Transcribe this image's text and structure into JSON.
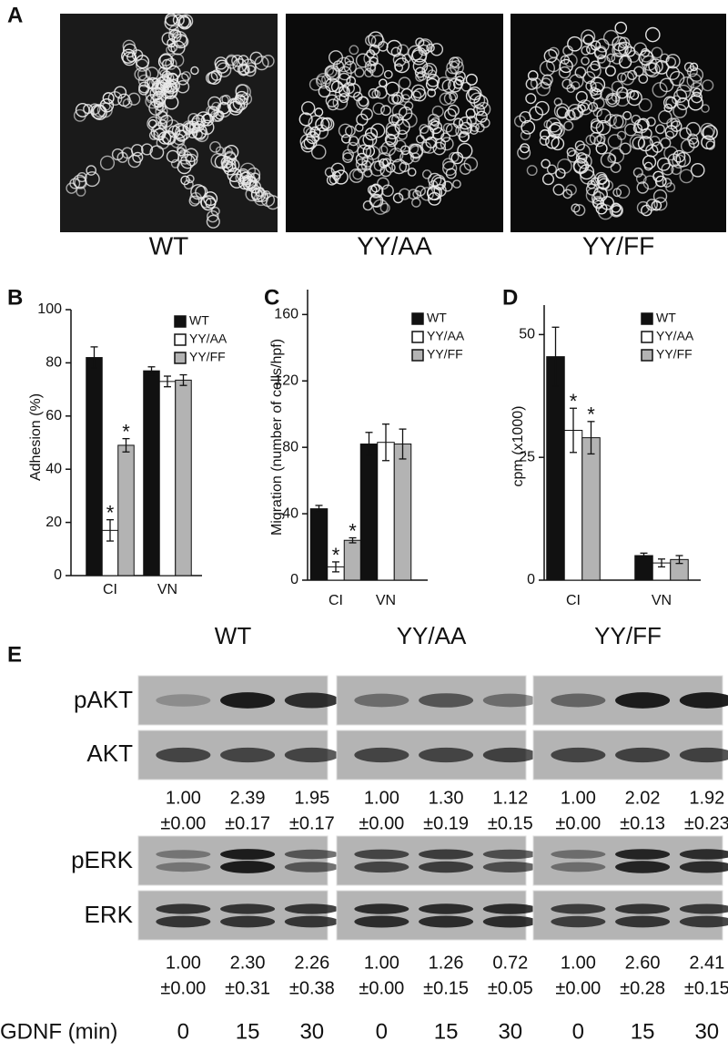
{
  "panel_labels": [
    "A",
    "B",
    "C",
    "D",
    "E"
  ],
  "images": {
    "captions": [
      "WT",
      "YY/AA",
      "YY/FF"
    ]
  },
  "chart_data": [
    {
      "type": "bar",
      "ylabel": "Adhesion (%)",
      "categories": [
        "CI",
        "VN"
      ],
      "ylim": [
        0,
        100
      ],
      "yticks": [
        0,
        20,
        40,
        60,
        80,
        100
      ],
      "series": [
        {
          "name": "WT",
          "color": "#111111",
          "values": [
            82,
            77
          ],
          "errors": [
            4,
            1.5
          ],
          "annotations": [
            null,
            null
          ]
        },
        {
          "name": "YY/AA",
          "color": "#ffffff",
          "values": [
            17,
            73
          ],
          "errors": [
            4,
            2
          ],
          "annotations": [
            "*",
            null
          ]
        },
        {
          "name": "YY/FF",
          "color": "#b3b3b3",
          "values": [
            49,
            73.5
          ],
          "errors": [
            2.5,
            2
          ],
          "annotations": [
            "*",
            null
          ]
        }
      ]
    },
    {
      "type": "bar",
      "ylabel": "Migration (number of cells/hpf)",
      "categories": [
        "CI",
        "VN"
      ],
      "ylim": [
        0,
        175
      ],
      "yticks": [
        0,
        40,
        80,
        120,
        160
      ],
      "series": [
        {
          "name": "WT",
          "color": "#111111",
          "values": [
            43,
            82
          ],
          "errors": [
            2,
            7
          ],
          "annotations": [
            null,
            null
          ]
        },
        {
          "name": "YY/AA",
          "color": "#ffffff",
          "values": [
            8,
            83
          ],
          "errors": [
            3,
            11
          ],
          "annotations": [
            "*",
            null
          ]
        },
        {
          "name": "YY/FF",
          "color": "#b3b3b3",
          "values": [
            24,
            82
          ],
          "errors": [
            1.5,
            9
          ],
          "annotations": [
            "*",
            null
          ]
        }
      ]
    },
    {
      "type": "bar",
      "ylabel": "cpm (x1000)",
      "categories": [
        "CI",
        "VN"
      ],
      "ylim": [
        0,
        56
      ],
      "yticks": [
        0,
        25,
        50
      ],
      "series": [
        {
          "name": "WT",
          "color": "#111111",
          "values": [
            45.5,
            5
          ],
          "errors": [
            6,
            0.5
          ],
          "annotations": [
            null,
            null
          ]
        },
        {
          "name": "YY/AA",
          "color": "#ffffff",
          "values": [
            30.5,
            3.5
          ],
          "errors": [
            4.5,
            0.8
          ],
          "annotations": [
            "*",
            null
          ]
        },
        {
          "name": "YY/FF",
          "color": "#b3b3b3",
          "values": [
            29,
            4.2
          ],
          "errors": [
            3.3,
            0.8
          ],
          "annotations": [
            "*",
            null
          ]
        }
      ]
    }
  ],
  "blots": {
    "groups": [
      "WT",
      "YY/AA",
      "YY/FF"
    ],
    "rows": [
      "pAKT",
      "AKT",
      "pERK",
      "ERK"
    ],
    "akt_ratios": [
      [
        "1.00",
        "±0.00"
      ],
      [
        "2.39",
        "±0.17"
      ],
      [
        "1.95",
        "±0.17"
      ],
      [
        "1.00",
        "±0.00"
      ],
      [
        "1.30",
        "±0.19"
      ],
      [
        "1.12",
        "±0.15"
      ],
      [
        "1.00",
        "±0.00"
      ],
      [
        "2.02",
        "±0.13"
      ],
      [
        "1.92",
        "±0.23"
      ]
    ],
    "erk_ratios": [
      [
        "1.00",
        "±0.00"
      ],
      [
        "2.30",
        "±0.31"
      ],
      [
        "2.26",
        "±0.38"
      ],
      [
        "1.00",
        "±0.00"
      ],
      [
        "1.26",
        "±0.15"
      ],
      [
        "0.72",
        "±0.05"
      ],
      [
        "1.00",
        "±0.00"
      ],
      [
        "2.60",
        "±0.28"
      ],
      [
        "2.41",
        "±0.15"
      ]
    ],
    "gdnf_label": "GDNF (min)",
    "gdnf_times": [
      0,
      15,
      30,
      0,
      15,
      30,
      0,
      15,
      30
    ]
  }
}
